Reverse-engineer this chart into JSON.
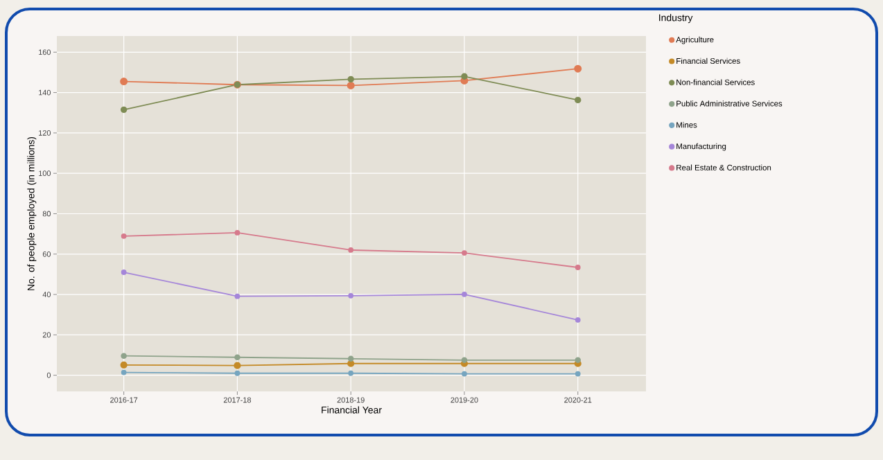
{
  "chart_data": {
    "type": "line",
    "xlabel": "Financial Year",
    "ylabel": "No. of people employed (in millions)",
    "legend_title": "Industry",
    "categories": [
      "2016-17",
      "2017-18",
      "2018-19",
      "2019-20",
      "2020-21"
    ],
    "series": [
      {
        "name": "Agriculture",
        "color": "#e07b54",
        "values": [
          145.5,
          143.9,
          143.5,
          145.9,
          151.8
        ]
      },
      {
        "name": "Financial Services",
        "color": "#c48a27",
        "values": [
          5.1,
          4.8,
          5.8,
          5.8,
          5.8
        ]
      },
      {
        "name": "Non-financial Services",
        "color": "#7f8c55",
        "values": [
          131.5,
          143.9,
          146.6,
          148.0,
          136.3
        ]
      },
      {
        "name": "Public Administrative Services",
        "color": "#8fa38b",
        "values": [
          9.6,
          8.9,
          8.2,
          7.5,
          7.5
        ]
      },
      {
        "name": "Mines",
        "color": "#76a5bf",
        "values": [
          1.4,
          1.0,
          1.0,
          0.7,
          0.7
        ]
      },
      {
        "name": "Manufacturing",
        "color": "#a586d9",
        "values": [
          51.0,
          39.1,
          39.4,
          40.1,
          27.4
        ]
      },
      {
        "name": "Real Estate & Construction",
        "color": "#d67a8c",
        "values": [
          68.9,
          70.6,
          62.0,
          60.6,
          53.4
        ]
      }
    ],
    "ylim": [
      -8,
      168
    ],
    "yticks": [
      0,
      20,
      40,
      60,
      80,
      100,
      120,
      140,
      160
    ],
    "grid": true,
    "legend": "right",
    "marker": "circle",
    "line_style": "solid"
  }
}
